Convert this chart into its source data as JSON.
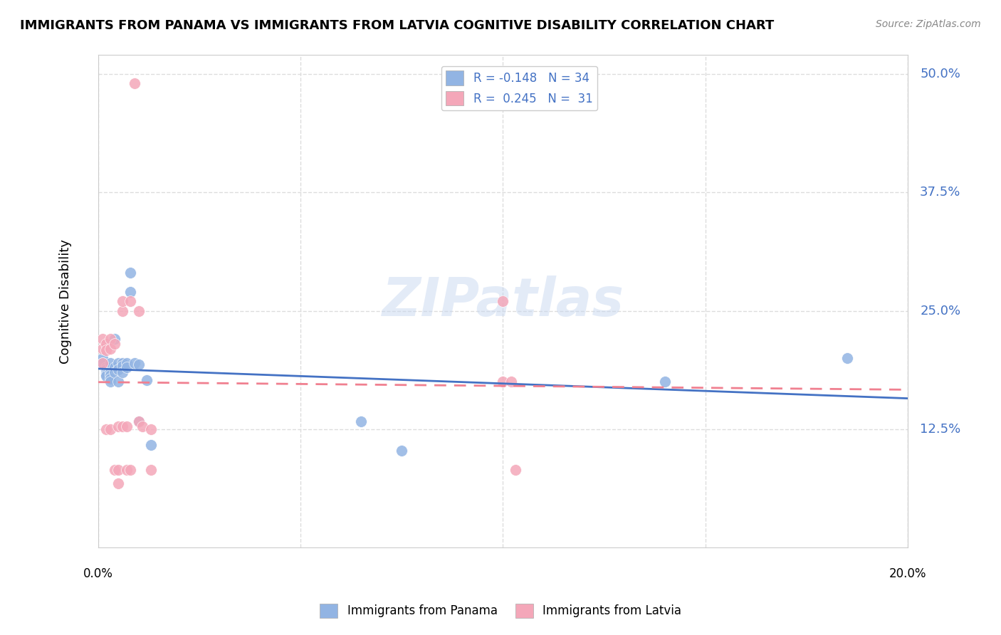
{
  "title": "IMMIGRANTS FROM PANAMA VS IMMIGRANTS FROM LATVIA COGNITIVE DISABILITY CORRELATION CHART",
  "source": "Source: ZipAtlas.com",
  "ylabel": "Cognitive Disability",
  "ytick_labels": [
    "12.5%",
    "25.0%",
    "37.5%",
    "50.0%"
  ],
  "ytick_values": [
    0.125,
    0.25,
    0.375,
    0.5
  ],
  "xlim": [
    0.0,
    0.2
  ],
  "ylim": [
    0.0,
    0.52
  ],
  "legend_panama": "R = -0.148   N = 34",
  "legend_latvia": "R =  0.245   N =  31",
  "panama_color": "#92b4e3",
  "latvia_color": "#f4a7b9",
  "trend_panama_color": "#4472c4",
  "trend_latvia_color": "#f08090",
  "watermark": "ZIPatlas",
  "panama_x": [
    0.001,
    0.001,
    0.002,
    0.002,
    0.002,
    0.002,
    0.002,
    0.003,
    0.003,
    0.003,
    0.003,
    0.003,
    0.004,
    0.004,
    0.004,
    0.005,
    0.005,
    0.005,
    0.006,
    0.006,
    0.006,
    0.007,
    0.007,
    0.008,
    0.008,
    0.009,
    0.01,
    0.01,
    0.012,
    0.013,
    0.065,
    0.075,
    0.14,
    0.185
  ],
  "panama_y": [
    0.2,
    0.195,
    0.19,
    0.188,
    0.185,
    0.183,
    0.181,
    0.195,
    0.185,
    0.182,
    0.178,
    0.175,
    0.22,
    0.19,
    0.185,
    0.195,
    0.188,
    0.175,
    0.195,
    0.192,
    0.185,
    0.195,
    0.19,
    0.29,
    0.27,
    0.195,
    0.193,
    0.133,
    0.177,
    0.108,
    0.133,
    0.102,
    0.175,
    0.2
  ],
  "latvia_x": [
    0.001,
    0.001,
    0.001,
    0.002,
    0.002,
    0.002,
    0.003,
    0.003,
    0.003,
    0.004,
    0.004,
    0.005,
    0.005,
    0.005,
    0.006,
    0.006,
    0.006,
    0.007,
    0.007,
    0.008,
    0.008,
    0.009,
    0.01,
    0.01,
    0.011,
    0.013,
    0.013,
    0.1,
    0.1,
    0.102,
    0.103
  ],
  "latvia_y": [
    0.22,
    0.21,
    0.195,
    0.215,
    0.208,
    0.125,
    0.22,
    0.21,
    0.125,
    0.215,
    0.082,
    0.128,
    0.082,
    0.068,
    0.25,
    0.26,
    0.128,
    0.128,
    0.082,
    0.26,
    0.082,
    0.49,
    0.25,
    0.133,
    0.128,
    0.125,
    0.082,
    0.175,
    0.26,
    0.175,
    0.082
  ],
  "background_color": "#ffffff",
  "grid_color": "#dddddd"
}
